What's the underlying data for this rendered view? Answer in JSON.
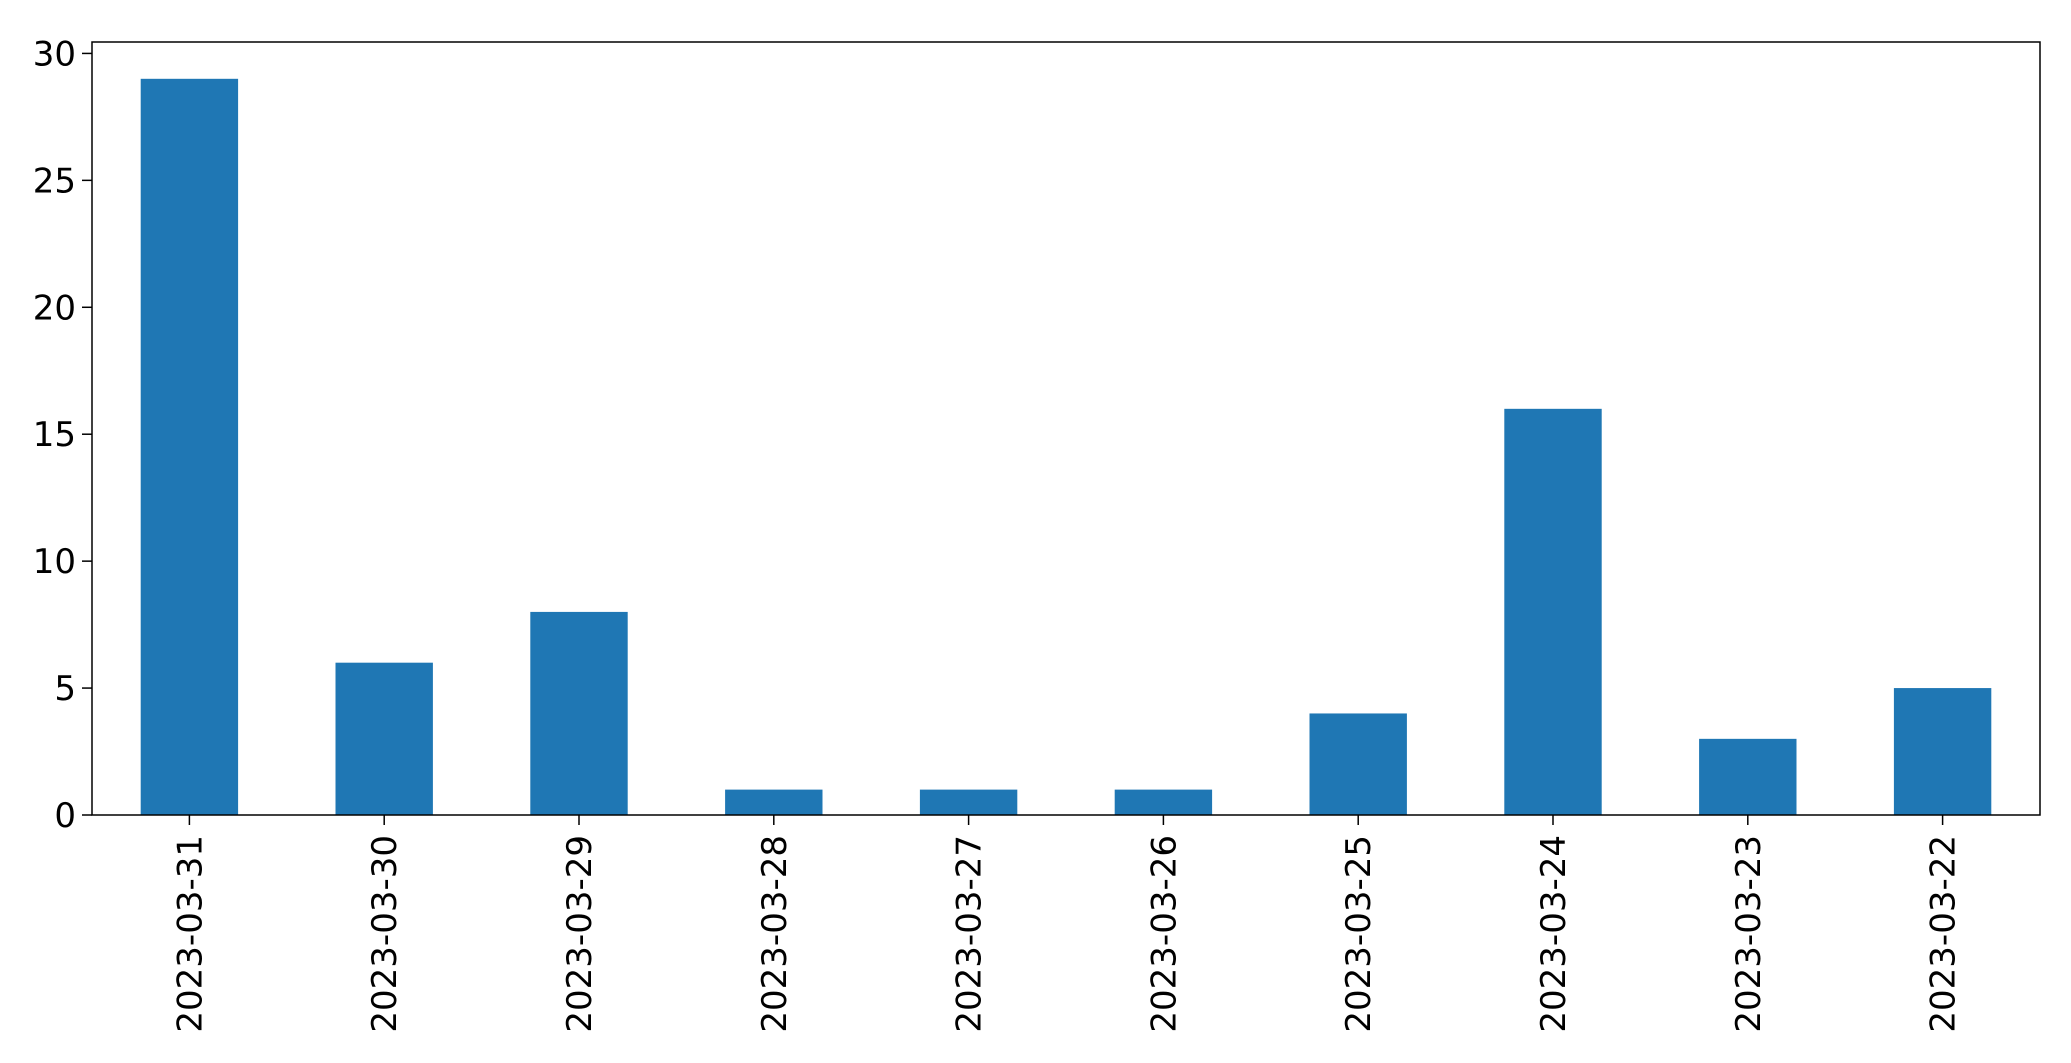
{
  "chart_data": {
    "type": "bar",
    "title": "",
    "xlabel": "",
    "ylabel": "",
    "categories": [
      "2023-03-31",
      "2023-03-30",
      "2023-03-29",
      "2023-03-28",
      "2023-03-27",
      "2023-03-26",
      "2023-03-25",
      "2023-03-24",
      "2023-03-23",
      "2023-03-22"
    ],
    "values": [
      29,
      6,
      8,
      1,
      1,
      1,
      4,
      16,
      3,
      5
    ],
    "ylim": [
      0,
      30.45
    ],
    "yticks": [
      0,
      5,
      10,
      15,
      20,
      25,
      30
    ],
    "grid": false,
    "legend": "none",
    "bar_color": "#1f77b4"
  }
}
